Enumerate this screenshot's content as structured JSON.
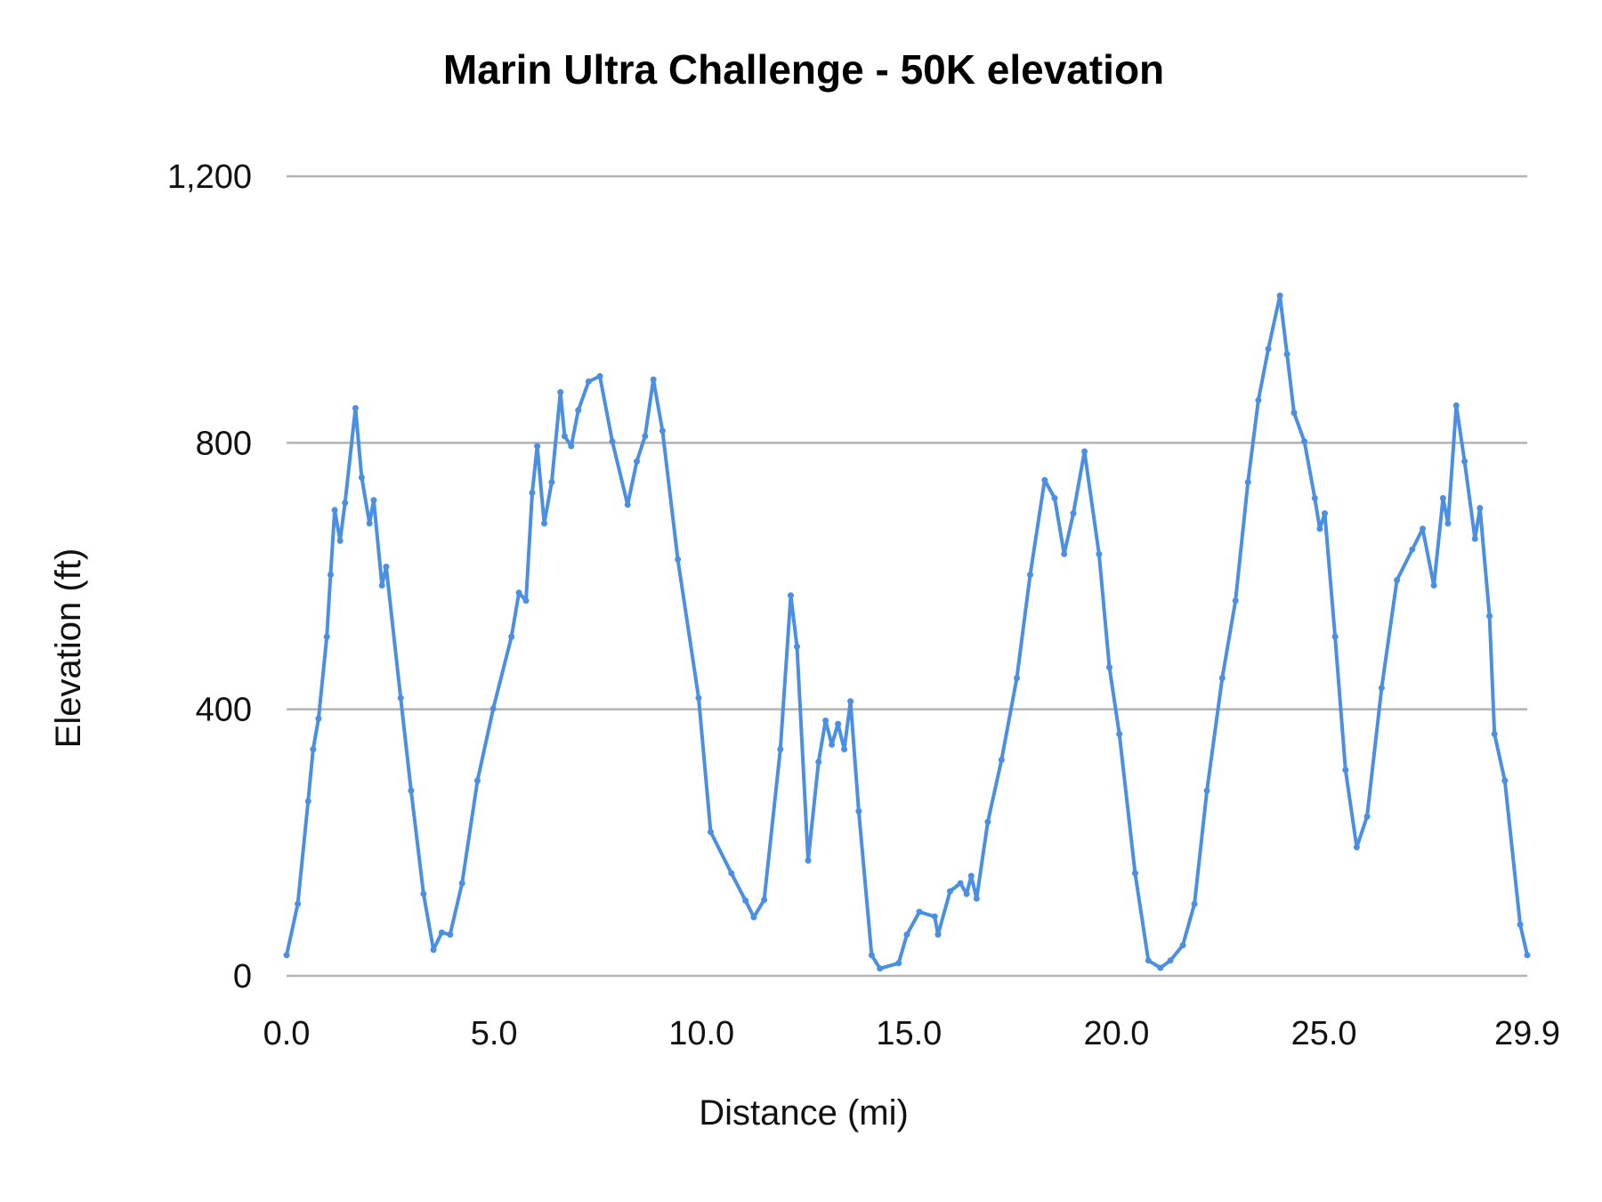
{
  "chart_data": {
    "type": "line",
    "title": "Marin Ultra Challenge - 50K elevation",
    "xlabel": "Distance (mi)",
    "ylabel": "Elevation (ft)",
    "xlim": [
      0,
      29.9
    ],
    "ylim": [
      0,
      1200
    ],
    "x_ticks": [
      "0.0",
      "5.0",
      "10.0",
      "15.0",
      "20.0",
      "25.0",
      "29.9"
    ],
    "x_tick_values": [
      0,
      5,
      10,
      15,
      20,
      25,
      29.9
    ],
    "y_ticks": [
      "0",
      "400",
      "800",
      "1,200"
    ],
    "y_tick_values": [
      0,
      400,
      800,
      1200
    ],
    "grid": true,
    "markers": true,
    "color": "#4a8fe2",
    "series": [
      {
        "x": [
          0,
          0.27,
          0.52,
          0.64,
          0.77,
          0.97,
          1.06,
          1.16,
          1.29,
          1.41,
          1.66,
          1.81,
          2.0,
          2.1,
          2.3,
          2.4,
          2.75,
          3.0,
          3.3,
          3.54,
          3.74,
          3.94,
          4.23,
          4.6,
          4.98,
          5.42,
          5.6,
          5.77,
          5.92,
          6.04,
          6.21,
          6.39,
          6.6,
          6.7,
          6.86,
          7.03,
          7.28,
          7.55,
          7.85,
          8.22,
          8.44,
          8.64,
          8.84,
          9.06,
          9.43,
          9.93,
          10.22,
          10.72,
          11.06,
          11.26,
          11.51,
          11.9,
          12.15,
          12.3,
          12.57,
          12.82,
          12.99,
          13.14,
          13.29,
          13.44,
          13.59,
          13.79,
          14.1,
          14.3,
          14.75,
          14.95,
          15.25,
          15.62,
          15.7,
          15.99,
          16.24,
          16.39,
          16.5,
          16.63,
          16.9,
          17.23,
          17.6,
          17.92,
          18.27,
          18.51,
          18.74,
          18.96,
          19.23,
          19.58,
          19.83,
          20.07,
          20.45,
          20.77,
          21.06,
          21.3,
          21.6,
          21.88,
          22.18,
          22.55,
          22.87,
          23.17,
          23.42,
          23.66,
          23.94,
          24.11,
          24.28,
          24.53,
          24.78,
          24.9,
          25.02,
          25.27,
          25.52,
          25.79,
          26.04,
          26.39,
          26.76,
          27.13,
          27.38,
          27.65,
          27.87,
          27.99,
          28.19,
          28.39,
          28.64,
          28.76,
          28.99,
          29.11,
          29.36,
          29.73,
          29.9
        ],
        "y": [
          31,
          108,
          262,
          340,
          386,
          509,
          602,
          699,
          653,
          710,
          852,
          748,
          679,
          714,
          586,
          614,
          417,
          278,
          123,
          39,
          65,
          62,
          139,
          293,
          401,
          509,
          575,
          563,
          725,
          795,
          679,
          741,
          876,
          810,
          795,
          849,
          892,
          900,
          802,
          707,
          772,
          810,
          895,
          818,
          625,
          417,
          216,
          154,
          113,
          88,
          114,
          340,
          571,
          494,
          173,
          321,
          383,
          347,
          378,
          340,
          412,
          247,
          31,
          11,
          19,
          62,
          96,
          89,
          62,
          127,
          139,
          123,
          150,
          116,
          231,
          324,
          447,
          602,
          744,
          717,
          633,
          694,
          787,
          633,
          463,
          363,
          154,
          23,
          12,
          23,
          46,
          108,
          278,
          447,
          563,
          741,
          864,
          941,
          1021,
          933,
          845,
          802,
          717,
          671,
          694,
          509,
          309,
          193,
          239,
          432,
          594,
          640,
          671,
          586,
          717,
          679,
          856,
          772,
          656,
          702,
          540,
          363,
          293,
          77,
          31
        ]
      }
    ]
  }
}
